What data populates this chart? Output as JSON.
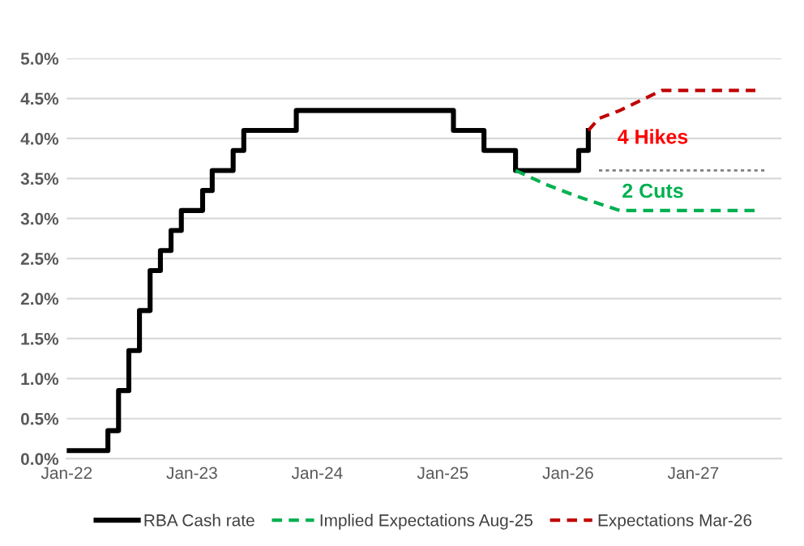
{
  "chart_data": {
    "type": "line",
    "series": [
      {
        "name": "RBA Cash rate",
        "type": "step",
        "color": "#000000",
        "line_style": "solid",
        "x": [
          "2022-01",
          "2022-05",
          "2022-06",
          "2022-07",
          "2022-08",
          "2022-09",
          "2022-10",
          "2022-11",
          "2022-12",
          "2023-02",
          "2023-03",
          "2023-05",
          "2023-06",
          "2023-11",
          "2025-02",
          "2025-05",
          "2025-08",
          "2026-02",
          "2026-03"
        ],
        "values": [
          0.1,
          0.35,
          0.85,
          1.35,
          1.85,
          2.35,
          2.6,
          2.85,
          3.1,
          3.35,
          3.6,
          3.85,
          4.1,
          4.35,
          4.1,
          3.85,
          3.6,
          3.85,
          4.1
        ]
      },
      {
        "name": "Implied Expectations Aug-25",
        "color": "#00b050",
        "line_style": "dashed",
        "x": [
          "2025-08",
          "2025-11",
          "2026-02",
          "2026-06",
          "2027-07"
        ],
        "values": [
          3.6,
          3.42,
          3.27,
          3.1,
          3.1
        ]
      },
      {
        "name": "Expectations Mar-26",
        "color": "#c00000",
        "line_style": "dashed",
        "x": [
          "2026-03",
          "2026-04",
          "2026-06",
          "2026-10",
          "2027-07"
        ],
        "values": [
          4.1,
          4.25,
          4.35,
          4.6,
          4.6
        ]
      },
      {
        "color": "#7f7f7f",
        "line_style": "dotted",
        "x": [
          "2026-04",
          "2027-08"
        ],
        "values": [
          3.6,
          3.6
        ]
      }
    ],
    "annotations": [
      "4 Hikes",
      "2 Cuts"
    ],
    "xlim": [
      "2022-01",
      "2027-09-15"
    ],
    "xticks": [
      {
        "value": "2022-01",
        "label": "Jan-22"
      },
      {
        "value": "2023-01",
        "label": "Jan-23"
      },
      {
        "value": "2024-01",
        "label": "Jan-24"
      },
      {
        "value": "2025-01",
        "label": "Jan-25"
      },
      {
        "value": "2026-01",
        "label": "Jan-26"
      },
      {
        "value": "2027-01",
        "label": "Jan-27"
      }
    ],
    "ylim": [
      0,
      5.0
    ],
    "yticks": [
      {
        "value": 0,
        "label": "0.0%"
      },
      {
        "value": 0.5,
        "label": "0.5%"
      },
      {
        "value": 1,
        "label": "1.0%"
      },
      {
        "value": 1.5,
        "label": "1.5%"
      },
      {
        "value": 2,
        "label": "2.0%"
      },
      {
        "value": 2.5,
        "label": "2.5%"
      },
      {
        "value": 3,
        "label": "3.0%"
      },
      {
        "value": 3.5,
        "label": "3.5%"
      },
      {
        "value": 4,
        "label": "4.0%"
      },
      {
        "value": 4.5,
        "label": "4.5%"
      },
      {
        "value": 5,
        "label": "5.0%"
      }
    ],
    "grid": "y",
    "legend": "bottom"
  }
}
